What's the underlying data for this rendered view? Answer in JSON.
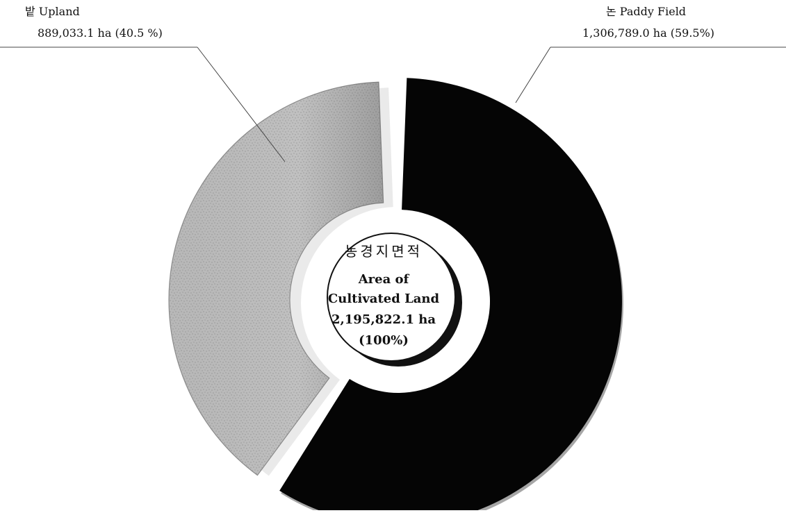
{
  "chart_data": {
    "type": "pie",
    "title": "",
    "center": {
      "korean_title": "농경지면적",
      "line1": "Area of",
      "line2": "Cultivated Land",
      "total": "2,195,822.1 ha",
      "percent": "(100%)"
    },
    "slices": [
      {
        "key": "paddy",
        "label_ko": "논",
        "label_en": "Paddy Field",
        "label_line1": "논  Paddy Field",
        "value_text": "1,306,789.0 ha (59.5%)",
        "value": 1306789.0,
        "percent": 59.5,
        "color": "#050505"
      },
      {
        "key": "upland",
        "label_ko": "밭",
        "label_en": "Upland",
        "label_line1": "밭  Upland",
        "value_text": "889,033.1 ha (40.5 %)",
        "value": 889033.1,
        "percent": 40.5,
        "color": "#c8c8c8"
      }
    ]
  },
  "colors": {
    "background": "#ffffff",
    "paddy": "#050505",
    "upland": "#c8c8c8",
    "upland_dark": "#9a9a9a",
    "center_fill": "#ffffff",
    "outline": "#111111"
  }
}
